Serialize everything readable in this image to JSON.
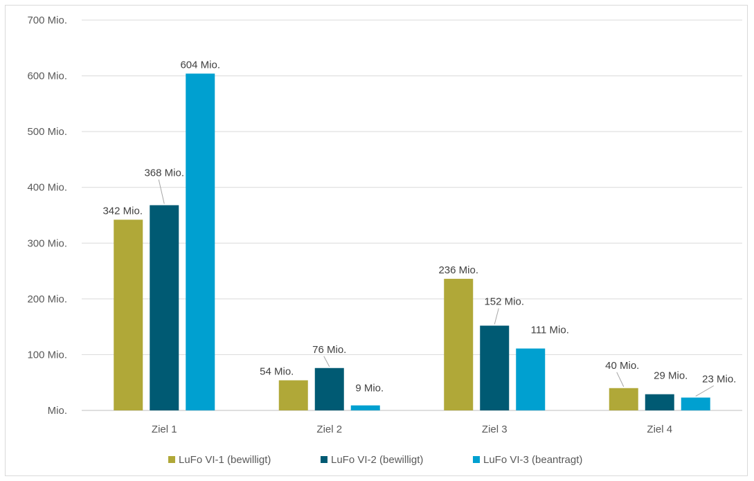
{
  "chart_data": {
    "type": "bar",
    "categories": [
      "Ziel 1",
      "Ziel 2",
      "Ziel 3",
      "Ziel 4"
    ],
    "series": [
      {
        "name": "LuFo VI-1 (bewilligt)",
        "color": "#b0a838",
        "values": [
          342,
          54,
          236,
          40
        ],
        "labels": [
          "342 Mio.",
          "54 Mio.",
          "236 Mio.",
          "40 Mio."
        ]
      },
      {
        "name": "LuFo VI-2 (bewilligt)",
        "color": "#005a73",
        "values": [
          368,
          76,
          152,
          29
        ],
        "labels": [
          "368 Mio.",
          "76 Mio.",
          "152 Mio.",
          "29 Mio."
        ]
      },
      {
        "name": "LuFo VI-3 (beantragt)",
        "color": "#00a0d0",
        "values": [
          604,
          9,
          111,
          23
        ],
        "labels": [
          "604 Mio.",
          "9 Mio.",
          "111 Mio.",
          "23 Mio."
        ]
      }
    ],
    "ylim": [
      0,
      700
    ],
    "yticks": [
      0,
      100,
      200,
      300,
      400,
      500,
      600,
      700
    ],
    "ytick_labels": [
      "Mio.",
      "100 Mio.",
      "200 Mio.",
      "300 Mio.",
      "400 Mio.",
      "500 Mio.",
      "600 Mio.",
      "700 Mio."
    ],
    "grid": true,
    "legend_position": "bottom"
  }
}
